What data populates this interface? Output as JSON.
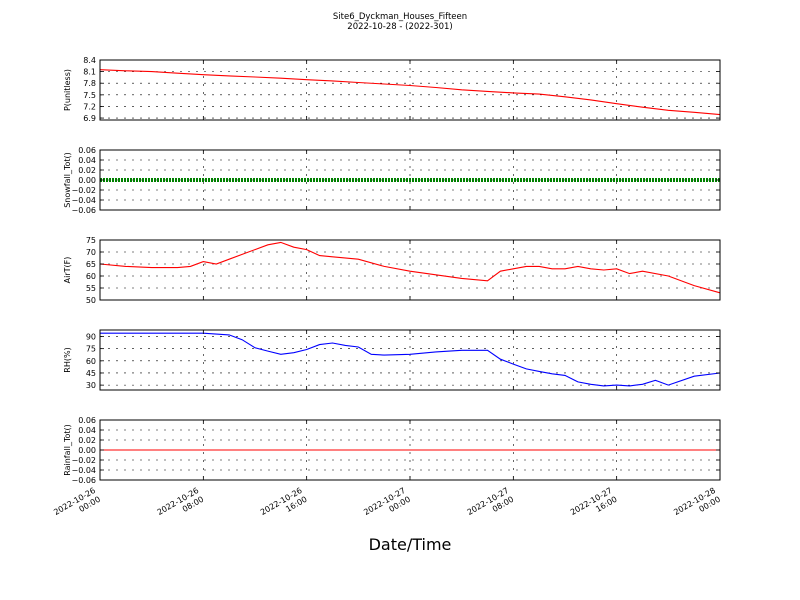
{
  "title": "Site6_Dyckman_Houses_Fifteen",
  "subtitle": "2022-10-28 - (2022-301)",
  "xlabel": "Date/Time",
  "x_ticks": [
    [
      "2022-10-26",
      "00:00"
    ],
    [
      "2022-10-26",
      "08:00"
    ],
    [
      "2022-10-26",
      "16:00"
    ],
    [
      "2022-10-27",
      "00:00"
    ],
    [
      "2022-10-27",
      "08:00"
    ],
    [
      "2022-10-27",
      "16:00"
    ],
    [
      "2022-10-28",
      "00:00"
    ]
  ],
  "colors": {
    "pressure": "#ff0000",
    "snowfall": "#008000",
    "temperature": "#ff0000",
    "humidity": "#0000ff",
    "rainfall": "#ff0000"
  },
  "chart_data": [
    {
      "type": "line",
      "ylabel": "P(unitless)",
      "ylim": [
        6.85,
        8.4
      ],
      "yticks": [
        6.9,
        7.2,
        7.5,
        7.8,
        8.1,
        8.4
      ],
      "ytick_labels": [
        "6.9",
        "7.2",
        "7.5",
        "7.8",
        "8.1",
        "8.4"
      ],
      "grid": true,
      "x_hours": [
        0,
        2,
        4,
        6,
        8,
        10,
        12,
        14,
        16,
        18,
        20,
        22,
        24,
        26,
        28,
        30,
        32,
        34,
        36,
        38,
        40,
        42,
        44,
        46,
        48
      ],
      "series": [
        {
          "color_key": "pressure",
          "values": [
            8.15,
            8.12,
            8.1,
            8.06,
            8.02,
            7.99,
            7.96,
            7.93,
            7.89,
            7.86,
            7.82,
            7.78,
            7.74,
            7.69,
            7.63,
            7.59,
            7.55,
            7.52,
            7.45,
            7.37,
            7.27,
            7.18,
            7.1,
            7.05,
            6.99
          ]
        }
      ]
    },
    {
      "type": "scatter",
      "ylabel": "Snowfall_Tot()",
      "ylim": [
        -0.06,
        0.06
      ],
      "yticks": [
        -0.06,
        -0.04,
        -0.02,
        0.0,
        0.02,
        0.04,
        0.06
      ],
      "ytick_labels": [
        "−0.06",
        "−0.04",
        "−0.02",
        "0.00",
        "0.02",
        "0.04",
        "0.06"
      ],
      "grid": true,
      "x_hours": [
        0,
        48
      ],
      "series": [
        {
          "color_key": "snowfall",
          "values": [
            0,
            0
          ]
        }
      ]
    },
    {
      "type": "line",
      "ylabel": "AirT(F)",
      "ylim": [
        50,
        75
      ],
      "yticks": [
        50,
        55,
        60,
        65,
        70,
        75
      ],
      "ytick_labels": [
        "50",
        "55",
        "60",
        "65",
        "70",
        "75"
      ],
      "grid": true,
      "x_hours": [
        0,
        2,
        4,
        6,
        7,
        8,
        9,
        10,
        11,
        12,
        13,
        14,
        15,
        16,
        17,
        18,
        20,
        22,
        24,
        26,
        28,
        30,
        31,
        32,
        33,
        34,
        35,
        36,
        37,
        38,
        39,
        40,
        41,
        42,
        44,
        46,
        48
      ],
      "series": [
        {
          "color_key": "temperature",
          "values": [
            65,
            64,
            63.5,
            63.5,
            64,
            66,
            65,
            67,
            69,
            71,
            73,
            74,
            72,
            71,
            68.5,
            68,
            67,
            64,
            62,
            60.5,
            59,
            58,
            62,
            63,
            64,
            64,
            63,
            63,
            64,
            63,
            62.5,
            63,
            61,
            62,
            60,
            56,
            53
          ]
        }
      ]
    },
    {
      "type": "line",
      "ylabel": "RH(%)",
      "ylim": [
        24,
        98
      ],
      "yticks": [
        30,
        45,
        60,
        75,
        90
      ],
      "ytick_labels": [
        "30",
        "45",
        "60",
        "75",
        "90"
      ],
      "grid": true,
      "x_hours": [
        0,
        2,
        4,
        6,
        8,
        10,
        11,
        12,
        13,
        14,
        15,
        16,
        17,
        18,
        19,
        20,
        21,
        22,
        24,
        26,
        28,
        30,
        31,
        32,
        33,
        34,
        35,
        36,
        37,
        38,
        39,
        40,
        41,
        42,
        43,
        44,
        46,
        48
      ],
      "series": [
        {
          "color_key": "humidity",
          "values": [
            94,
            94,
            94,
            94,
            94,
            92,
            86,
            76,
            72,
            68,
            70,
            74,
            80,
            82,
            79,
            77,
            68,
            67,
            68,
            71,
            73,
            73,
            62,
            56,
            50,
            47,
            44,
            42,
            34,
            31,
            29,
            30,
            29,
            31,
            36,
            30,
            41,
            45
          ]
        }
      ]
    },
    {
      "type": "line",
      "ylabel": "Rainfall_Tot()",
      "ylim": [
        -0.06,
        0.06
      ],
      "yticks": [
        -0.06,
        -0.04,
        -0.02,
        0.0,
        0.02,
        0.04,
        0.06
      ],
      "ytick_labels": [
        "−0.06",
        "−0.04",
        "−0.02",
        "0.00",
        "0.02",
        "0.04",
        "0.06"
      ],
      "grid": true,
      "x_hours": [
        0,
        48
      ],
      "series": [
        {
          "color_key": "rainfall",
          "values": [
            0,
            0
          ]
        }
      ]
    }
  ]
}
